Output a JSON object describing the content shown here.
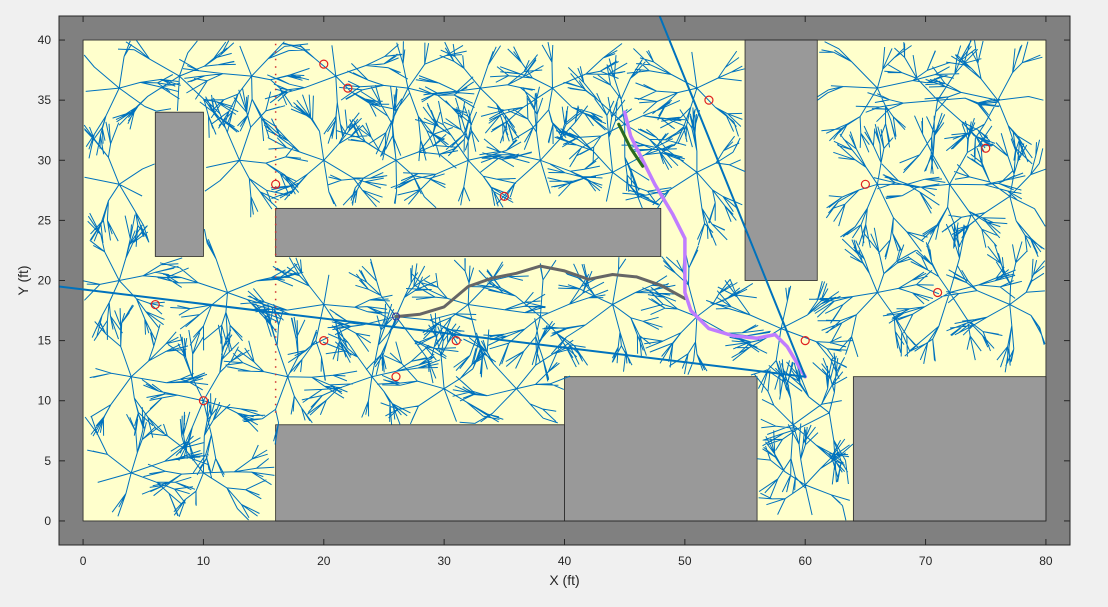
{
  "chart_data": {
    "type": "line",
    "title": "",
    "xlabel": "X (ft)",
    "ylabel": "Y (ft)",
    "xlim": [
      -2,
      82
    ],
    "ylim": [
      -2,
      42
    ],
    "xticks": [
      0,
      10,
      20,
      30,
      40,
      50,
      60,
      70,
      80
    ],
    "yticks": [
      0,
      5,
      10,
      15,
      20,
      25,
      30,
      35,
      40
    ],
    "grid": false,
    "legend": "none",
    "colors": {
      "figure_bg": "#f0f0f0",
      "axes_bg": "#808080",
      "free_space": "#ffffcc",
      "obstacle": "#999999",
      "tree": "#0072bd",
      "path_lavender": "#c07cff",
      "path_green": "#2a6b1e",
      "path_gray": "#666666",
      "waypoint": "#e02020"
    },
    "map_boundary": [
      [
        0,
        0
      ],
      [
        80,
        40
      ]
    ],
    "obstacles": [
      {
        "x": [
          6,
          10
        ],
        "y": [
          22,
          34
        ]
      },
      {
        "x": [
          16,
          48
        ],
        "y": [
          22,
          26
        ]
      },
      {
        "x": [
          55,
          61
        ],
        "y": [
          20,
          40
        ]
      },
      {
        "x": [
          16,
          40
        ],
        "y": [
          0,
          8
        ]
      },
      {
        "x": [
          40,
          56
        ],
        "y": [
          0,
          12
        ]
      },
      {
        "x": [
          64,
          80
        ],
        "y": [
          0,
          12
        ]
      }
    ],
    "tree_roots": [
      {
        "x": 3,
        "y": 36
      },
      {
        "x": 8,
        "y": 37
      },
      {
        "x": 14,
        "y": 37
      },
      {
        "x": 21,
        "y": 37
      },
      {
        "x": 27,
        "y": 36
      },
      {
        "x": 33,
        "y": 36
      },
      {
        "x": 39,
        "y": 36
      },
      {
        "x": 45,
        "y": 33
      },
      {
        "x": 51,
        "y": 36
      },
      {
        "x": 66,
        "y": 36
      },
      {
        "x": 71,
        "y": 35
      },
      {
        "x": 76,
        "y": 35
      },
      {
        "x": 3,
        "y": 28
      },
      {
        "x": 13,
        "y": 30
      },
      {
        "x": 20,
        "y": 30
      },
      {
        "x": 26,
        "y": 30
      },
      {
        "x": 32,
        "y": 30
      },
      {
        "x": 38,
        "y": 30
      },
      {
        "x": 44,
        "y": 29
      },
      {
        "x": 51,
        "y": 29
      },
      {
        "x": 66,
        "y": 28
      },
      {
        "x": 72,
        "y": 28
      },
      {
        "x": 77,
        "y": 27
      },
      {
        "x": 3,
        "y": 20
      },
      {
        "x": 12,
        "y": 19
      },
      {
        "x": 20,
        "y": 18
      },
      {
        "x": 26,
        "y": 17
      },
      {
        "x": 32,
        "y": 18
      },
      {
        "x": 38,
        "y": 17
      },
      {
        "x": 44,
        "y": 18
      },
      {
        "x": 51,
        "y": 17
      },
      {
        "x": 58,
        "y": 16
      },
      {
        "x": 66,
        "y": 19
      },
      {
        "x": 72,
        "y": 19
      },
      {
        "x": 77,
        "y": 18
      },
      {
        "x": 4,
        "y": 12
      },
      {
        "x": 10,
        "y": 10
      },
      {
        "x": 17,
        "y": 12
      },
      {
        "x": 24,
        "y": 12
      },
      {
        "x": 30,
        "y": 11
      },
      {
        "x": 36,
        "y": 11
      },
      {
        "x": 4,
        "y": 4
      },
      {
        "x": 10,
        "y": 4
      },
      {
        "x": 59,
        "y": 8
      },
      {
        "x": 60,
        "y": 3
      },
      {
        "x": 62,
        "y": 9
      }
    ],
    "series": [
      {
        "values": [
          [
            26,
            17
          ],
          [
            28,
            17.2
          ],
          [
            30,
            17.8
          ],
          [
            32,
            19.5
          ],
          [
            34,
            20.2
          ],
          [
            36,
            20.6
          ],
          [
            38,
            21.2
          ],
          [
            40,
            20.8
          ],
          [
            42,
            20.1
          ],
          [
            44,
            20.5
          ],
          [
            46,
            20.3
          ],
          [
            48,
            19.6
          ],
          [
            50,
            18.5
          ]
        ]
      },
      {
        "values": [
          [
            45,
            34
          ],
          [
            45.5,
            32
          ],
          [
            46.5,
            30
          ],
          [
            47.5,
            28
          ],
          [
            49,
            25.5
          ],
          [
            50,
            23.5
          ],
          [
            50,
            21
          ],
          [
            50,
            19
          ],
          [
            50.5,
            17.5
          ],
          [
            52,
            16
          ],
          [
            54,
            15.4
          ],
          [
            56,
            15.2
          ],
          [
            57.5,
            15.5
          ],
          [
            58.5,
            14.5
          ],
          [
            60,
            12
          ]
        ]
      },
      {
        "values": [
          [
            44.5,
            33
          ],
          [
            45.5,
            31
          ],
          [
            46.5,
            29.5
          ]
        ]
      },
      {
        "values": [
          [
            -2,
            19.5
          ],
          [
            60,
            12
          ]
        ]
      },
      {
        "values": [
          [
            47.5,
            43
          ],
          [
            60,
            12
          ]
        ]
      }
    ],
    "waypoints": [
      {
        "x": 20,
        "y": 38
      },
      {
        "x": 22,
        "y": 36
      },
      {
        "x": 52,
        "y": 35
      },
      {
        "x": 75,
        "y": 31
      },
      {
        "x": 16,
        "y": 28
      },
      {
        "x": 35,
        "y": 27
      },
      {
        "x": 65,
        "y": 28
      },
      {
        "x": 6,
        "y": 18
      },
      {
        "x": 71,
        "y": 19
      },
      {
        "x": 20,
        "y": 15
      },
      {
        "x": 31,
        "y": 15
      },
      {
        "x": 60,
        "y": 15
      },
      {
        "x": 26,
        "y": 12
      },
      {
        "x": 10,
        "y": 10
      }
    ],
    "dotted_line": {
      "x": 16,
      "y_range": [
        9,
        40
      ]
    }
  }
}
